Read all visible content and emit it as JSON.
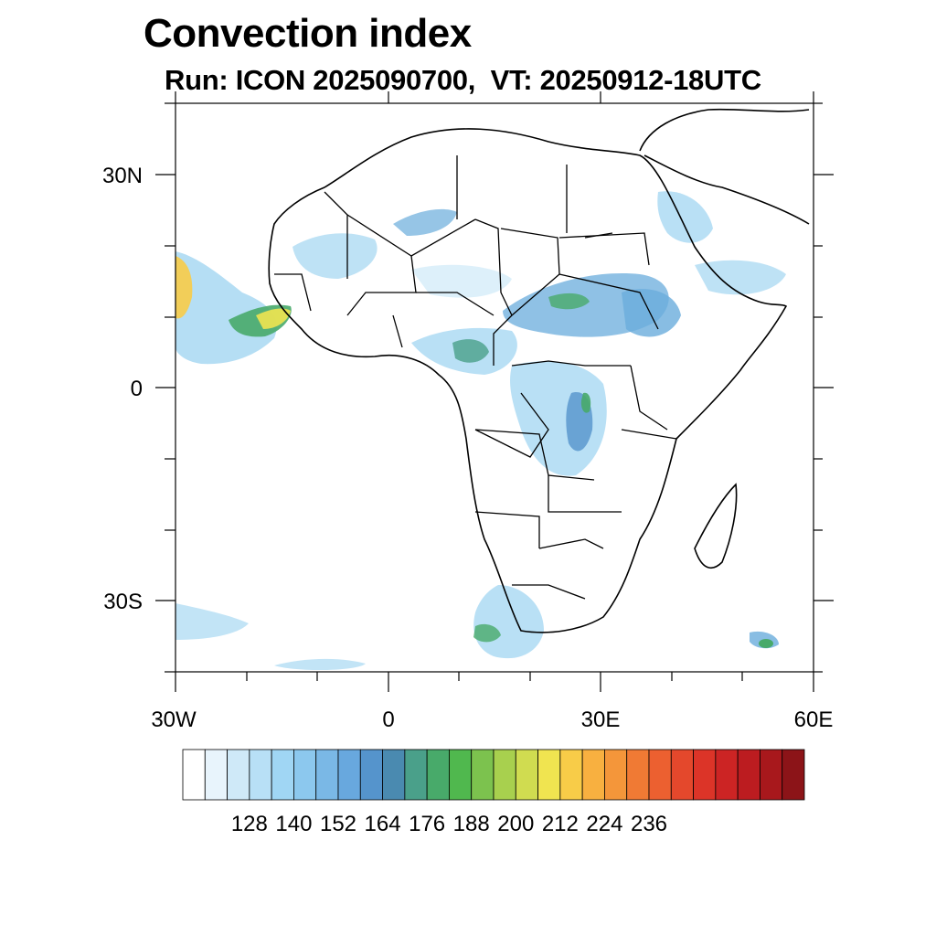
{
  "title": "Convection index",
  "subtitle": "Run: ICON 2025090700,  VT: 20250912-18UTC",
  "axes": {
    "lat_labels": [
      "30N",
      "0",
      "30S"
    ],
    "lon_labels": [
      "30W",
      "0",
      "30E",
      "60E"
    ]
  },
  "colorbar": {
    "colors": [
      "#ffffff",
      "#e8f4fc",
      "#cfe9f8",
      "#b8e0f6",
      "#a0d6f4",
      "#8cc8ee",
      "#7ab8e6",
      "#68a8de",
      "#5594cc",
      "#4a8ab0",
      "#4aa08a",
      "#48aa6a",
      "#50b84e",
      "#7cc24e",
      "#a8d04e",
      "#d0dc50",
      "#f0e450",
      "#f8cc48",
      "#f8b040",
      "#f4963a",
      "#f07a34",
      "#ec6030",
      "#e4482c",
      "#dc3428",
      "#cc2424",
      "#bc1c20",
      "#a8181c",
      "#8c1418"
    ],
    "labels": [
      "128",
      "140",
      "152",
      "164",
      "176",
      "188",
      "200",
      "212",
      "224",
      "236"
    ]
  },
  "legend_colors": {
    "light_blue": "#a8d8f2",
    "mid_blue": "#6aacdc",
    "teal": "#4aa08a",
    "green": "#48aa6a",
    "yellow": "#f0e450",
    "orange": "#f8b040"
  }
}
